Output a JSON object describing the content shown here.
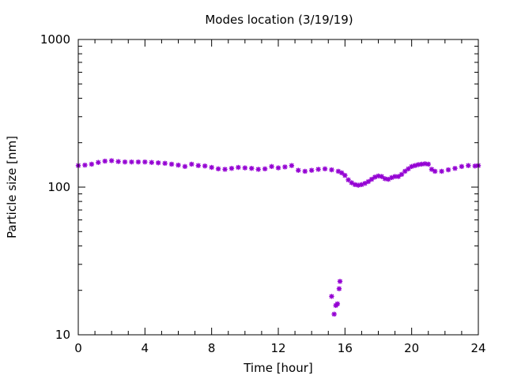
{
  "chart_data": {
    "type": "scatter",
    "title": "Modes location (3/19/19)",
    "xlabel": "Time [hour]",
    "ylabel": "Particle size [nm]",
    "xlim": [
      0,
      24
    ],
    "ylim": [
      10,
      1000
    ],
    "yscale": "log",
    "xticks": [
      "0",
      "4",
      "8",
      "12",
      "16",
      "20",
      "24"
    ],
    "yticks": [
      "10",
      "100",
      "1000"
    ],
    "grid": false,
    "legend": "none",
    "marker_color": "#9400d3",
    "series": [
      {
        "x": [
          0.0,
          0.4,
          0.8,
          1.2,
          1.6,
          2.0,
          2.4,
          2.8,
          3.2,
          3.6,
          4.0,
          4.4,
          4.8,
          5.2,
          5.6,
          6.0,
          6.4,
          6.8,
          7.2,
          7.6,
          8.0,
          8.4,
          8.8,
          9.2,
          9.6,
          10.0,
          10.4,
          10.8,
          11.2,
          11.6,
          12.0,
          12.4,
          12.8,
          13.2,
          13.6,
          14.0,
          14.4,
          14.8,
          15.2,
          15.6,
          15.8,
          16.0,
          16.2,
          16.4,
          16.6,
          16.8,
          17.0,
          17.2,
          17.4,
          17.6,
          17.8,
          18.0,
          18.2,
          18.4,
          18.6,
          18.8,
          19.0,
          19.2,
          19.4,
          19.6,
          19.8,
          20.0,
          20.2,
          20.4,
          20.6,
          20.8,
          21.0,
          21.2,
          21.4,
          21.8,
          22.2,
          22.6,
          23.0,
          23.4,
          23.8,
          24.0
        ],
        "y": [
          140,
          141,
          143,
          147,
          150,
          151,
          149,
          148,
          148,
          148,
          148,
          147,
          146,
          145,
          143,
          141,
          138,
          143,
          140,
          139,
          136,
          133,
          132,
          134,
          136,
          135,
          134,
          132,
          133,
          138,
          135,
          137,
          140,
          130,
          128,
          130,
          132,
          133,
          131,
          128,
          125,
          120,
          112,
          107,
          104,
          103,
          104,
          106,
          109,
          113,
          117,
          119,
          118,
          114,
          113,
          116,
          118,
          118,
          122,
          128,
          133,
          138,
          140,
          142,
          143,
          144,
          143,
          132,
          128,
          128,
          131,
          134,
          138,
          140,
          139,
          140
        ]
      },
      {
        "x": [
          15.2,
          15.35,
          15.45,
          15.55,
          15.65,
          15.7
        ],
        "y": [
          18.2,
          13.8,
          15.8,
          16.2,
          20.5,
          23.0
        ]
      }
    ]
  }
}
